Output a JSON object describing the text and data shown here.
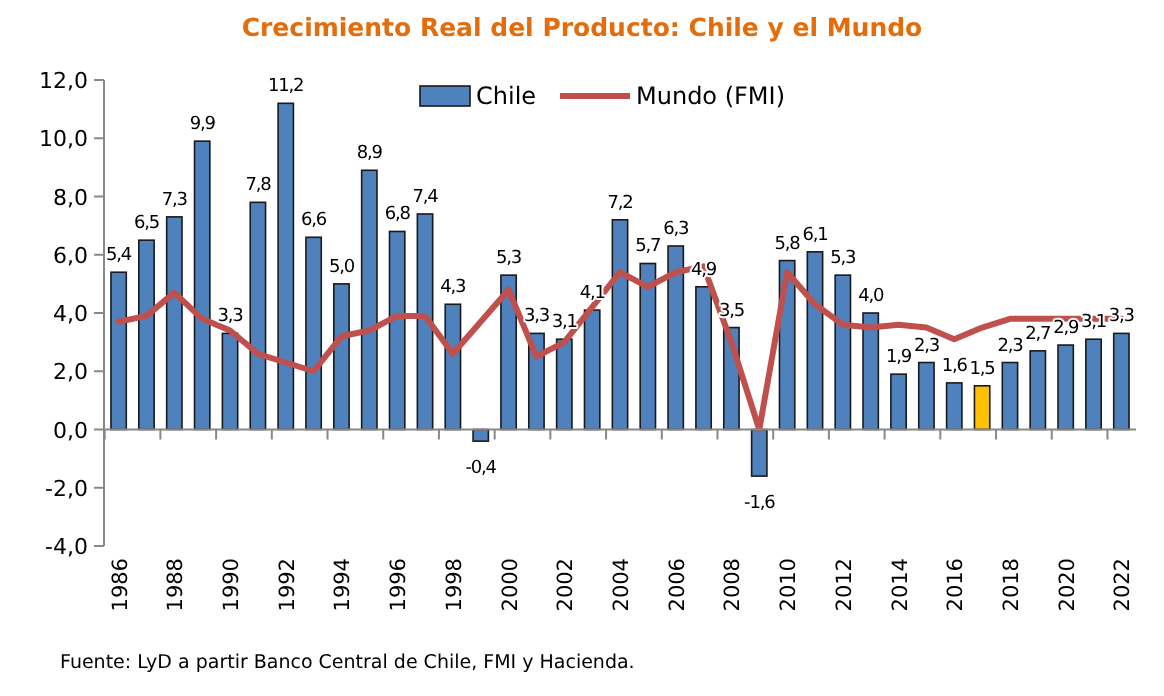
{
  "chart_data": {
    "type": "bar",
    "title": "Crecimiento Real del Producto: Chile y el Mundo",
    "categories": [
      "1986",
      null,
      "1988",
      null,
      "1990",
      null,
      "1992",
      null,
      "1994",
      null,
      "1996",
      null,
      "1998",
      null,
      "2000",
      null,
      "2002",
      null,
      "2004",
      null,
      "2006",
      null,
      "2008",
      null,
      "2010",
      null,
      "2012",
      null,
      "2014",
      null,
      "2016",
      null,
      "2018",
      null,
      "2020",
      null,
      "2022"
    ],
    "series": [
      {
        "name": "Chile",
        "color": "#4f81bd",
        "colors": [
          "#4f81bd",
          "#4f81bd",
          "#4f81bd",
          "#4f81bd",
          "#4f81bd",
          "#4f81bd",
          "#4f81bd",
          "#4f81bd",
          "#4f81bd",
          "#4f81bd",
          "#4f81bd",
          "#4f81bd",
          "#4f81bd",
          "#4f81bd",
          "#4f81bd",
          "#4f81bd",
          "#4f81bd",
          "#4f81bd",
          "#4f81bd",
          "#4f81bd",
          "#4f81bd",
          "#4f81bd",
          "#4f81bd",
          "#4f81bd",
          "#4f81bd",
          "#4f81bd",
          "#4f81bd",
          "#4f81bd",
          "#4f81bd",
          "#4f81bd",
          "#4f81bd",
          "#ffc000",
          "#4f81bd",
          "#4f81bd",
          "#4f81bd",
          "#4f81bd",
          "#4f81bd"
        ],
        "values": [
          5.4,
          6.5,
          7.3,
          9.9,
          3.3,
          7.8,
          11.2,
          6.6,
          5.0,
          8.9,
          6.8,
          7.4,
          4.3,
          -0.4,
          5.3,
          3.3,
          3.1,
          4.1,
          7.2,
          5.7,
          6.3,
          4.9,
          3.5,
          -1.6,
          5.8,
          6.1,
          5.3,
          4.0,
          1.9,
          2.3,
          1.6,
          1.5,
          2.3,
          2.7,
          2.9,
          3.1,
          3.3
        ],
        "value_labels": [
          "5,4",
          "6,5",
          "7,3",
          "9,9",
          "3,3",
          "7,8",
          "11,2",
          "6,6",
          "5,0",
          "8,9",
          "6,8",
          "7,4",
          "4,3",
          "-0,4",
          "5,3",
          "3,3",
          "3,1",
          "4,1",
          "7,2",
          "5,7",
          "6,3",
          "4,9",
          "3,5",
          "-1,6",
          "5,8",
          "6,1",
          "5,3",
          "4,0",
          "1,9",
          "2,3",
          "1,6",
          "1,5",
          "2,3",
          "2,7",
          "2,9",
          "3,1",
          "3,3"
        ]
      },
      {
        "name": "Mundo (FMI)",
        "type": "line",
        "color": "#c0504d",
        "values": [
          3.7,
          3.9,
          4.7,
          3.8,
          3.4,
          2.6,
          2.3,
          2.0,
          3.2,
          3.4,
          3.9,
          3.9,
          2.6,
          3.7,
          4.8,
          2.5,
          3.0,
          4.2,
          5.4,
          4.9,
          5.4,
          5.6,
          3.0,
          0.0,
          5.4,
          4.3,
          3.6,
          3.5,
          3.6,
          3.5,
          3.1,
          3.5,
          3.8,
          3.8,
          3.8,
          3.8,
          3.8
        ]
      }
    ],
    "ylim": [
      -4,
      12
    ],
    "yticks": [
      {
        "value": -4,
        "label": "-4,0"
      },
      {
        "value": -2,
        "label": "-2,0"
      },
      {
        "value": 0,
        "label": "0,0"
      },
      {
        "value": 2,
        "label": "2,0"
      },
      {
        "value": 4,
        "label": "4,0"
      },
      {
        "value": 6,
        "label": "6,0"
      },
      {
        "value": 8,
        "label": "8,0"
      },
      {
        "value": 10,
        "label": "10,0"
      },
      {
        "value": 12,
        "label": "12,0"
      }
    ],
    "legend": "top",
    "line_style": "solid",
    "marker": "none",
    "annotations": [
      "Fuente: LyD a partir Banco Central de Chile, FMI y Hacienda."
    ]
  }
}
